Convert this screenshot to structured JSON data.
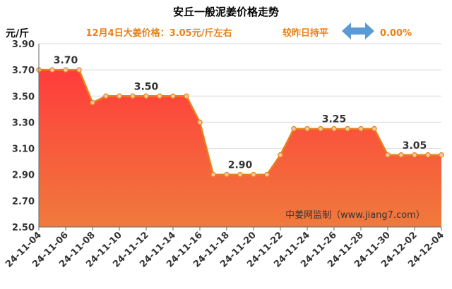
{
  "header": {
    "title": "安丘一般泥姜价格走势",
    "unit": "元/斤",
    "price_note": "12月4日大姜价格：3.05元/斤左右",
    "compare_label": "较昨日持平",
    "change_value": "0.00%",
    "compare_icon": "double-arrow-icon"
  },
  "watermark": "中姜网监制（www.jiang7.com）",
  "colors": {
    "line": "#e8811a",
    "fill_top": "#ff3c3c",
    "fill_bottom": "#f07a3c",
    "marker_fill": "#f5c9a0",
    "arrow": "#5b9bd5",
    "accent_text": "#e8811a"
  },
  "chart_data": {
    "type": "area",
    "title": "安丘一般泥姜价格走势",
    "ylabel": "元/斤",
    "xlabel": "",
    "ylim": [
      2.5,
      3.9
    ],
    "yticks": [
      "2.50",
      "2.70",
      "2.90",
      "3.10",
      "3.30",
      "3.50",
      "3.70",
      "3.90"
    ],
    "grid": true,
    "xtick_labels": [
      "24-11-04",
      "24-11-06",
      "24-11-08",
      "24-11-10",
      "24-11-12",
      "24-11-14",
      "24-11-16",
      "24-11-18",
      "24-11-20",
      "24-11-22",
      "24-11-24",
      "24-11-26",
      "24-11-28",
      "24-11-30",
      "24-12-02",
      "24-12-04"
    ],
    "x": [
      "24-11-04",
      "24-11-05",
      "24-11-06",
      "24-11-07",
      "24-11-08",
      "24-11-09",
      "24-11-10",
      "24-11-11",
      "24-11-12",
      "24-11-13",
      "24-11-14",
      "24-11-15",
      "24-11-16",
      "24-11-17",
      "24-11-18",
      "24-11-19",
      "24-11-20",
      "24-11-21",
      "24-11-22",
      "24-11-23",
      "24-11-24",
      "24-11-25",
      "24-11-26",
      "24-11-27",
      "24-11-28",
      "24-11-29",
      "24-11-30",
      "24-12-01",
      "24-12-02",
      "24-12-03",
      "24-12-04"
    ],
    "values": [
      3.7,
      3.7,
      3.7,
      3.7,
      3.45,
      3.5,
      3.5,
      3.5,
      3.5,
      3.5,
      3.5,
      3.5,
      3.3,
      2.9,
      2.9,
      2.9,
      2.9,
      2.9,
      3.05,
      3.25,
      3.25,
      3.25,
      3.25,
      3.25,
      3.25,
      3.25,
      3.05,
      3.05,
      3.05,
      3.05,
      3.05
    ],
    "annotations": [
      {
        "text": "3.70",
        "x": "24-11-06",
        "y": 3.7
      },
      {
        "text": "3.50",
        "x": "24-11-12",
        "y": 3.5
      },
      {
        "text": "2.90",
        "x": "24-11-19",
        "y": 2.9
      },
      {
        "text": "3.25",
        "x": "24-11-26",
        "y": 3.25
      },
      {
        "text": "3.05",
        "x": "24-12-02",
        "y": 3.05
      }
    ]
  }
}
